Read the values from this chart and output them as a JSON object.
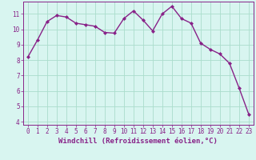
{
  "x": [
    0,
    1,
    2,
    3,
    4,
    5,
    6,
    7,
    8,
    9,
    10,
    11,
    12,
    13,
    14,
    15,
    16,
    17,
    18,
    19,
    20,
    21,
    22,
    23
  ],
  "y": [
    8.2,
    9.3,
    10.5,
    10.9,
    10.8,
    10.4,
    10.3,
    10.2,
    9.8,
    9.75,
    10.7,
    11.2,
    10.6,
    9.9,
    11.0,
    11.5,
    10.7,
    10.4,
    9.1,
    8.7,
    8.4,
    7.8,
    6.2,
    4.5
  ],
  "line_color": "#882288",
  "marker": "D",
  "marker_size": 2.0,
  "bg_color": "#d8f5f0",
  "grid_color": "#aaddcc",
  "xlabel": "Windchill (Refroidissement éolien,°C)",
  "xlim": [
    -0.5,
    23.5
  ],
  "ylim": [
    3.8,
    11.8
  ],
  "yticks": [
    4,
    5,
    6,
    7,
    8,
    9,
    10,
    11
  ],
  "xticks": [
    0,
    1,
    2,
    3,
    4,
    5,
    6,
    7,
    8,
    9,
    10,
    11,
    12,
    13,
    14,
    15,
    16,
    17,
    18,
    19,
    20,
    21,
    22,
    23
  ],
  "tick_label_fontsize": 5.5,
  "xlabel_fontsize": 6.5,
  "line_width": 1.0
}
